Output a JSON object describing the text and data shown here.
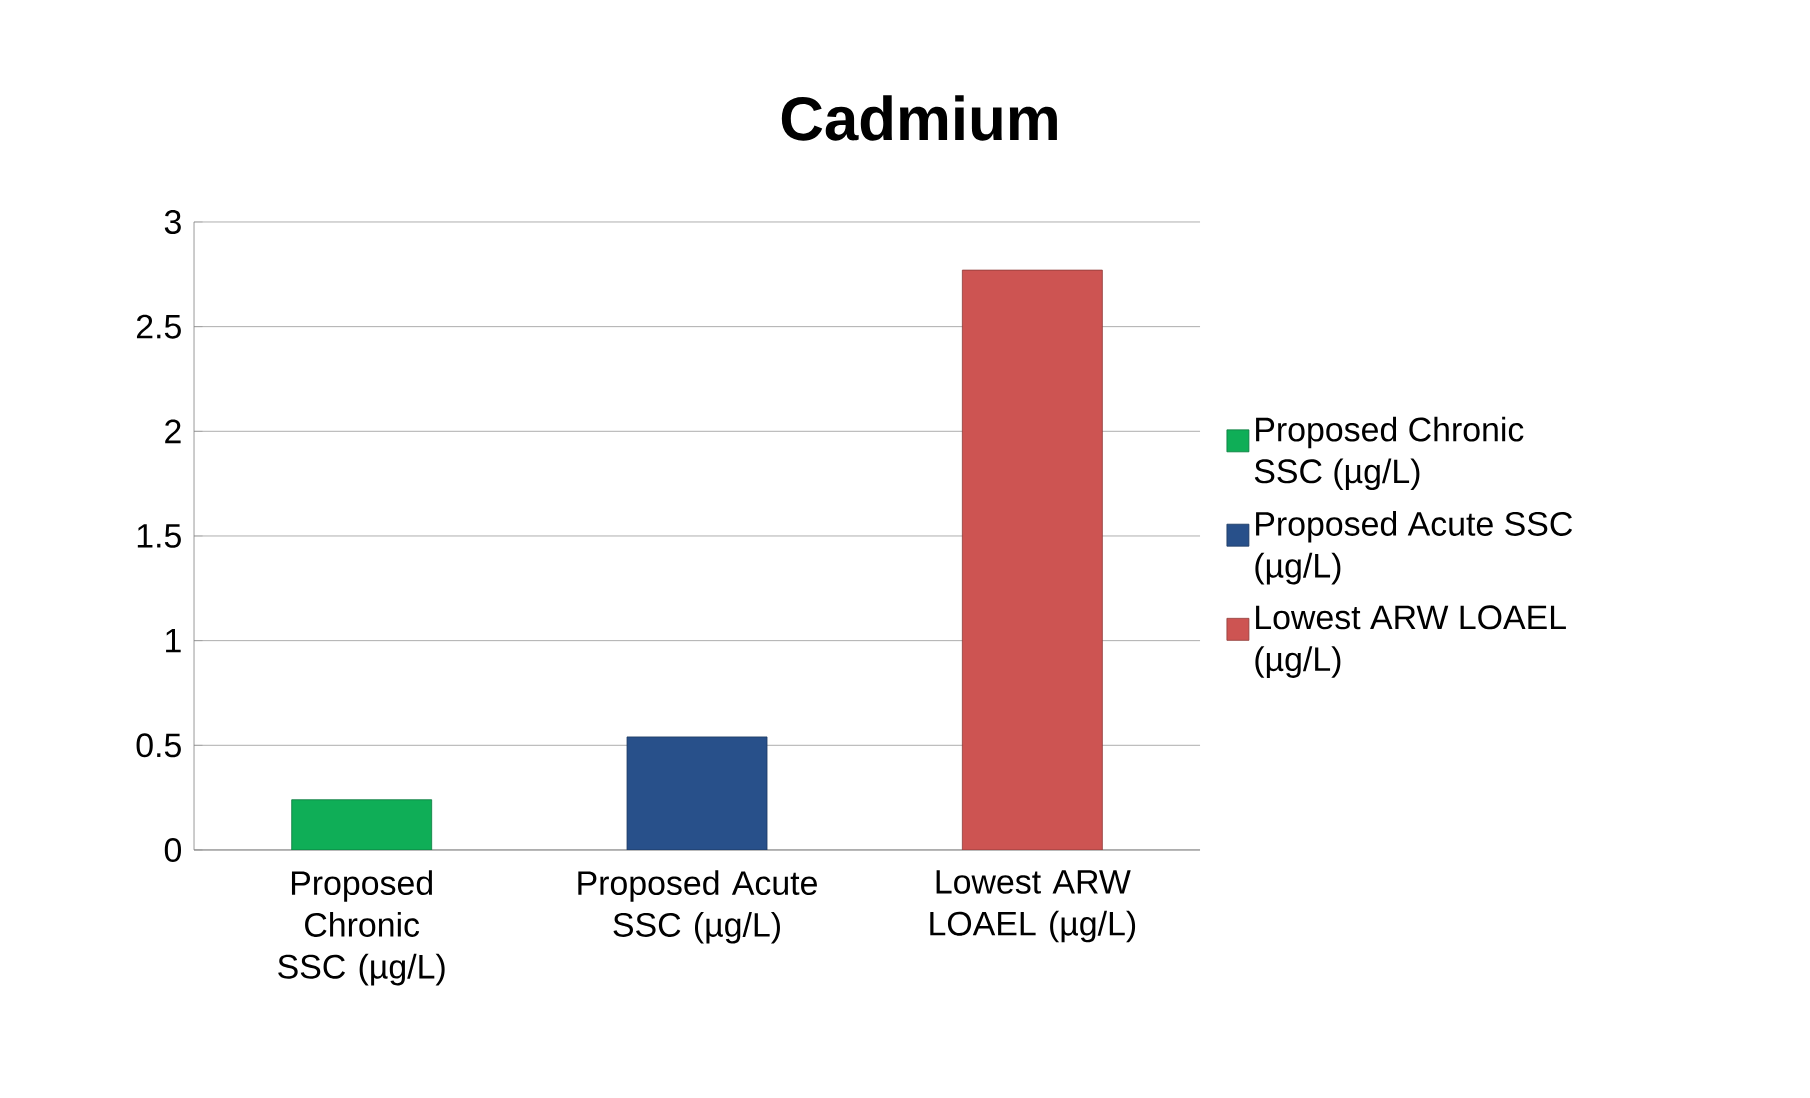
{
  "chart_data": {
    "type": "bar",
    "title": "Cadmium",
    "categories": [
      "Proposed Chronic SSC (µg/L)",
      "Proposed Acute SSC (µg/L)",
      "Lowest ARW LOAEL (µg/L)"
    ],
    "series": [
      {
        "name": "Proposed Chronic SSC (µg/L)",
        "color": "#0fae57",
        "values": [
          0.24,
          null,
          null
        ]
      },
      {
        "name": "Proposed Acute SSC (µg/L)",
        "color": "#28508a",
        "values": [
          null,
          0.54,
          null
        ]
      },
      {
        "name": "Lowest ARW LOAEL (µg/L)",
        "color": "#cd5452",
        "values": [
          null,
          null,
          2.77
        ]
      }
    ],
    "ylim": [
      0,
      3
    ],
    "yticks": [
      0,
      0.5,
      1,
      1.5,
      2,
      2.5,
      3
    ],
    "grid": "y",
    "legend": "right"
  }
}
